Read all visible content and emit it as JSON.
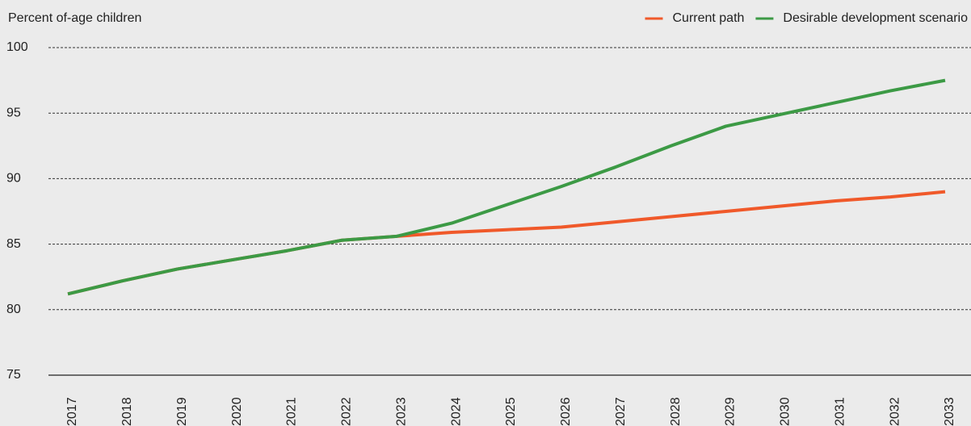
{
  "chart_data": {
    "type": "line",
    "y_label": "Percent of-age children",
    "x": [
      "2017",
      "2018",
      "2019",
      "2020",
      "2021",
      "2022",
      "2023",
      "2024",
      "2025",
      "2026",
      "2027",
      "2028",
      "2029",
      "2030",
      "2031",
      "2032",
      "2033"
    ],
    "series": [
      {
        "name": "Current path",
        "color": "#f0592a",
        "values": [
          81.2,
          82.2,
          83.1,
          83.8,
          84.5,
          85.3,
          85.6,
          85.9,
          86.1,
          86.3,
          86.7,
          87.1,
          87.5,
          87.9,
          88.3,
          88.6,
          89.0
        ]
      },
      {
        "name": "Desirable development scenario",
        "color": "#3c9a45",
        "values": [
          81.2,
          82.2,
          83.1,
          83.8,
          84.5,
          85.3,
          85.6,
          86.6,
          88.0,
          89.4,
          90.9,
          92.5,
          94.0,
          94.9,
          95.8,
          96.7,
          97.5
        ]
      }
    ],
    "ylim": [
      75,
      100
    ],
    "yticks": [
      75,
      80,
      85,
      90,
      95,
      100
    ],
    "grid": true,
    "legend": "top-right"
  }
}
